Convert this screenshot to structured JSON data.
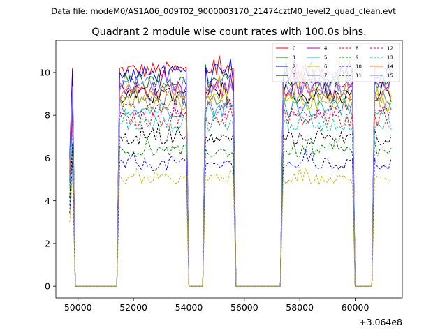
{
  "chart_data": {
    "type": "line",
    "suptitle": "Data file: modeM0/AS1A06_009T02_9000003170_21474cztM0_level2_quad_clean.evt",
    "title": "Quadrant 2 module wise count rates with 100.0s bins.",
    "xlabel": "",
    "ylabel": "",
    "x_offset_label": "+3.064e8",
    "xlim": [
      49200,
      61700
    ],
    "ylim": [
      -0.55,
      11.5
    ],
    "xticks": [
      50000,
      52000,
      54000,
      56000,
      58000,
      60000
    ],
    "xtick_labels": [
      "50000",
      "52000",
      "54000",
      "56000",
      "58000",
      "60000"
    ],
    "yticks": [
      0,
      2,
      4,
      6,
      8,
      10
    ],
    "ytick_labels": [
      "0",
      "2",
      "4",
      "6",
      "8",
      "10"
    ],
    "grid": false,
    "legend_location": "top-right",
    "bin_seconds": 100,
    "x_start": 49700,
    "segments": [
      {
        "start": 49700,
        "end": 49800
      },
      {
        "start": 51500,
        "end": 53950
      },
      {
        "start": 54550,
        "end": 55650
      },
      {
        "start": 57350,
        "end": 59950
      },
      {
        "start": 60650,
        "end": 61350
      }
    ],
    "series": [
      {
        "name": "0",
        "color": "#ff0000",
        "dashed": false,
        "level": 10.1,
        "jitter": 0.4
      },
      {
        "name": "1",
        "color": "#008000",
        "dashed": false,
        "level": 9.6,
        "jitter": 0.4
      },
      {
        "name": "2",
        "color": "#0000ff",
        "dashed": false,
        "level": 9.9,
        "jitter": 0.4
      },
      {
        "name": "3",
        "color": "#000000",
        "dashed": false,
        "level": 8.9,
        "jitter": 0.4
      },
      {
        "name": "4",
        "color": "#bf00bf",
        "dashed": false,
        "level": 9.2,
        "jitter": 0.4
      },
      {
        "name": "5",
        "color": "#00bfbf",
        "dashed": false,
        "level": 8.3,
        "jitter": 0.4
      },
      {
        "name": "6",
        "color": "#bfbf00",
        "dashed": false,
        "level": 8.6,
        "jitter": 0.4
      },
      {
        "name": "7",
        "color": "#808080",
        "dashed": false,
        "level": 8.8,
        "jitter": 0.4
      },
      {
        "name": "8",
        "color": "#ff0000",
        "dashed": true,
        "level": 7.8,
        "jitter": 0.35
      },
      {
        "name": "9",
        "color": "#008000",
        "dashed": true,
        "level": 6.3,
        "jitter": 0.3
      },
      {
        "name": "10",
        "color": "#0000ff",
        "dashed": true,
        "level": 5.7,
        "jitter": 0.3
      },
      {
        "name": "11",
        "color": "#000000",
        "dashed": true,
        "level": 6.9,
        "jitter": 0.3
      },
      {
        "name": "12",
        "color": "#bf00bf",
        "dashed": true,
        "level": 8.2,
        "jitter": 0.35
      },
      {
        "name": "13",
        "color": "#00bfbf",
        "dashed": true,
        "level": 7.6,
        "jitter": 0.35
      },
      {
        "name": "14",
        "color": "#ff7f0e",
        "dashed": false,
        "level": 9.1,
        "jitter": 0.4
      },
      {
        "name": "15",
        "color": "#7f7fff",
        "dashed": false,
        "level": 9.4,
        "jitter": 0.4
      }
    ],
    "yellow_dashed": {
      "color": "#bfbf00",
      "level": 5.0,
      "jitter": 0.25
    }
  }
}
